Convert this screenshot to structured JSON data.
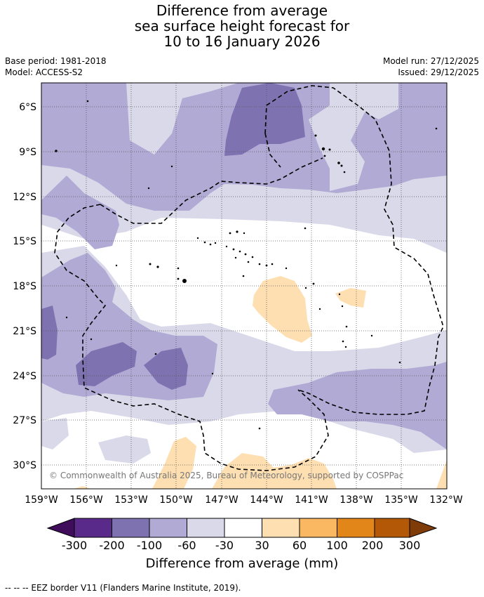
{
  "title": {
    "line1": "Difference from average",
    "line2": "sea surface height forecast for",
    "line3": "10 to 16 January 2026"
  },
  "meta": {
    "base_period": "Base period: 1981-2018",
    "model": "Model: ACCESS-S2",
    "model_run": "Model run: 27/12/2025",
    "issued": "Issued: 29/12/2025"
  },
  "map": {
    "lat_ticks": [
      "6°S",
      "9°S",
      "12°S",
      "15°S",
      "18°S",
      "21°S",
      "24°S",
      "27°S",
      "30°S"
    ],
    "lon_ticks": [
      "159°W",
      "156°W",
      "153°W",
      "150°W",
      "147°W",
      "144°W",
      "141°W",
      "138°W",
      "135°W",
      "132°W"
    ],
    "copyright": "© Commonwealth of Australia 2025, Bureau of Meteorology, supported by COSPPac"
  },
  "colorbar": {
    "title": "Difference from average (mm)",
    "labels": [
      "-300",
      "-200",
      "-100",
      "-60",
      "-30",
      "30",
      "60",
      "100",
      "200",
      "300"
    ],
    "colors": [
      "#3f0d5c",
      "#5a2a8a",
      "#7f72b0",
      "#b0aad4",
      "#d9d9ea",
      "#ffffff",
      "#fedfb2",
      "#fbb862",
      "#e3861a",
      "#b35806",
      "#7f3b08"
    ]
  },
  "footnote": "--  --  -- EEZ border V11 (Flanders Marine Institute, 2019)."
}
